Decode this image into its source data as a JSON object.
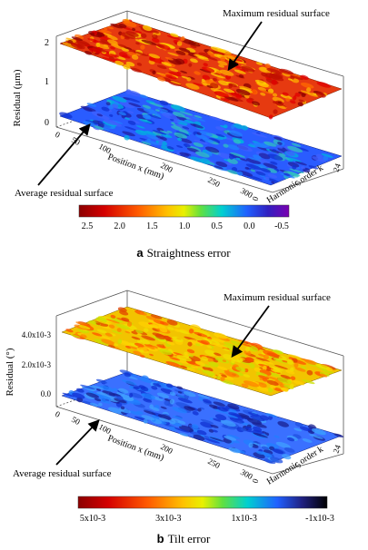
{
  "chart_data": [
    {
      "type": "surface",
      "caption_letter": "a",
      "caption_text": "Straightness error",
      "ylabel": "Residual (μm)",
      "position_axis_label": "Position x (mm)",
      "harmonic_axis_label": "Harmonic order k",
      "z_ticks": [
        "0",
        "1",
        "2"
      ],
      "position_ticks": [
        "0",
        "50",
        "100",
        "200",
        "250",
        "300"
      ],
      "harmonic_ticks": [
        "0",
        "5",
        "24"
      ],
      "colorbar_ticks": [
        "2.5",
        "2.0",
        "1.5",
        "1.0",
        "0.5",
        "0.0",
        "-0.5"
      ],
      "colorbar_range": [
        2.5,
        -0.5
      ],
      "annotations": [
        "Maximum residual surface",
        "Average residual surface"
      ],
      "surfaces": [
        {
          "name": "Maximum residual surface",
          "level": 1.9,
          "dominant_color": "red-orange"
        },
        {
          "name": "Average residual surface",
          "level": 0.2,
          "dominant_color": "blue"
        }
      ]
    },
    {
      "type": "surface",
      "caption_letter": "b",
      "caption_text": "Tilt error",
      "ylabel": "Residual (°)",
      "position_axis_label": "Position x (mm)",
      "harmonic_axis_label": "Harmonic order k",
      "z_ticks": [
        "0.0",
        "2.0x10-3",
        "4.0x10-3"
      ],
      "position_ticks": [
        "0",
        "50",
        "100",
        "200",
        "250",
        "300"
      ],
      "harmonic_ticks": [
        "0",
        "5",
        "24"
      ],
      "colorbar_ticks": [
        "5x10-3",
        "3x10-3",
        "1x10-3",
        "-1x10-3"
      ],
      "colorbar_range": [
        0.005,
        -0.001
      ],
      "annotations": [
        "Maximum residual surface",
        "Average residual surface"
      ],
      "surfaces": [
        {
          "name": "Maximum residual surface",
          "level": 0.0032,
          "dominant_color": "yellow-orange"
        },
        {
          "name": "Average residual surface",
          "level": 0.0004,
          "dominant_color": "blue"
        }
      ]
    }
  ]
}
